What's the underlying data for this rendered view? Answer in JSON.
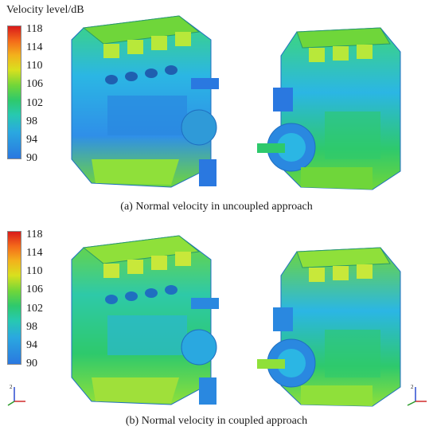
{
  "legend": {
    "title": "Velocity level/dB",
    "ticks": [
      "118",
      "114",
      "110",
      "106",
      "102",
      "98",
      "94",
      "90"
    ],
    "colors": [
      "#d91a1a",
      "#f46a1a",
      "#f3b21c",
      "#d9e01e",
      "#6fd63a",
      "#2ec96c",
      "#27c9b0",
      "#2aa8e0",
      "#2a78e0"
    ]
  },
  "captions": {
    "a": "(a) Normal velocity in uncoupled approach",
    "b": "(b) Normal velocity in coupled approach"
  },
  "axis_labels": {
    "z": "2",
    "x": "X"
  },
  "panels": [
    {
      "id": "uncoupled-front",
      "dominant": "#2db6e6"
    },
    {
      "id": "uncoupled-rear",
      "dominant": "#2db6e6"
    },
    {
      "id": "coupled-front",
      "dominant": "#3cc4a8"
    },
    {
      "id": "coupled-rear",
      "dominant": "#3cc4a8"
    }
  ]
}
